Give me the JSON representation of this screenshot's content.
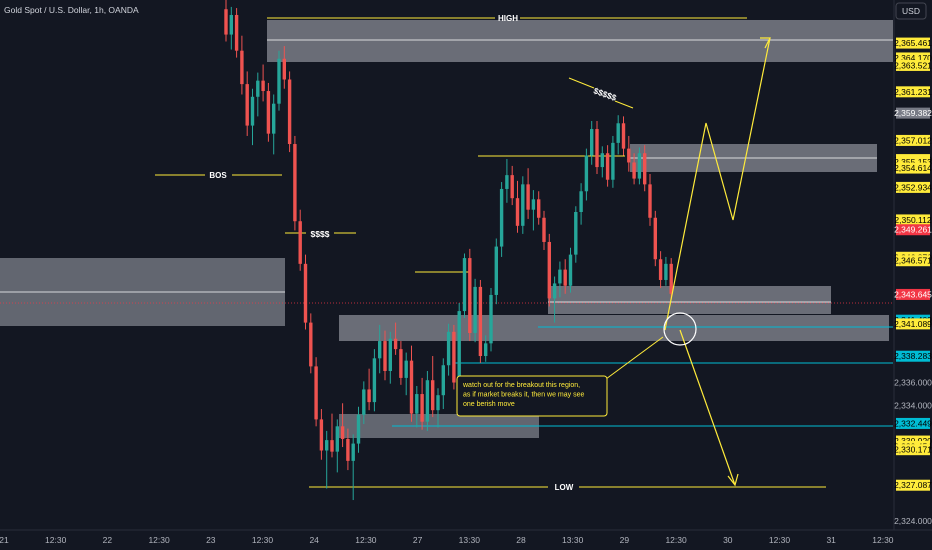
{
  "header": {
    "symbol": "Gold Spot / U.S. Dollar, 1h, OANDA",
    "currency": "USD"
  },
  "colors": {
    "background": "#131722",
    "up": "#26a69a",
    "down": "#ef5350",
    "zone": "#b2b5be",
    "yellow": "#ffeb3b",
    "cyan": "#00bcd4",
    "text": "#d1d4dc",
    "axis": "#b2b5be",
    "current_label": "#f23645"
  },
  "chart_data": {
    "type": "candlestick",
    "xlabel": "",
    "ylabel": "",
    "ylim": [
      2323.2,
      2369.2
    ],
    "y_ticks": [
      2324.0,
      2334.0,
      2336.0
    ],
    "x_ticks": [
      "21",
      "12:30",
      "22",
      "12:30",
      "23",
      "12:30",
      "24",
      "12:30",
      "27",
      "13:30",
      "28",
      "13:30",
      "29",
      "12:30",
      "30",
      "12:30",
      "31",
      "12:30"
    ],
    "price_labels": [
      {
        "text": "2,365.461",
        "value": 2365.461,
        "style": "yellow"
      },
      {
        "text": "2,364.170",
        "value": 2364.17,
        "style": "yellow"
      },
      {
        "text": "2,363.521",
        "value": 2363.521,
        "style": "yellow"
      },
      {
        "text": "2,361.231",
        "value": 2361.231,
        "style": "yellow"
      },
      {
        "text": "2,359.382",
        "value": 2359.382,
        "style": "gray"
      },
      {
        "text": "2,357.012",
        "value": 2357.012,
        "style": "yellow"
      },
      {
        "text": "2,355.349",
        "value": 2355.349,
        "style": "yellow"
      },
      {
        "text": "2,355.153",
        "value": 2355.153,
        "style": "yellow"
      },
      {
        "text": "2,354.614",
        "value": 2354.614,
        "style": "yellow"
      },
      {
        "text": "2,352.934",
        "value": 2352.934,
        "style": "yellow"
      },
      {
        "text": "2,350.112",
        "value": 2350.112,
        "style": "yellow"
      },
      {
        "text": "2,349.261",
        "value": 2349.261,
        "style": "red"
      },
      {
        "text": "2,346.870",
        "value": 2346.87,
        "style": "yellow"
      },
      {
        "text": "2,346.571",
        "value": 2346.571,
        "style": "yellow"
      },
      {
        "text": "2,343.645",
        "value": 2343.645,
        "style": "red"
      },
      {
        "text": "2,341.409",
        "value": 2341.409,
        "style": "cyan"
      },
      {
        "text": "2,341.089",
        "value": 2341.089,
        "style": "yellow"
      },
      {
        "text": "2,338.283",
        "value": 2338.283,
        "style": "cyan"
      },
      {
        "text": "2,332.449",
        "value": 2332.449,
        "style": "cyan"
      },
      {
        "text": "2,330.920",
        "value": 2330.92,
        "style": "yellow"
      },
      {
        "text": "2,330.454",
        "value": 2330.454,
        "style": "yellow"
      },
      {
        "text": "2,330.171",
        "value": 2330.171,
        "style": "yellow"
      },
      {
        "text": "2,327.087",
        "value": 2327.087,
        "style": "yellow"
      }
    ],
    "candles": [
      [
        2368.4,
        2369.3,
        2365.6,
        2366.2
      ],
      [
        2366.2,
        2368.6,
        2364.9,
        2367.9
      ],
      [
        2367.9,
        2368.5,
        2364.2,
        2364.8
      ],
      [
        2364.8,
        2366.1,
        2361.0,
        2361.9
      ],
      [
        2361.9,
        2363.0,
        2357.4,
        2358.3
      ],
      [
        2358.3,
        2361.5,
        2356.6,
        2360.8
      ],
      [
        2360.8,
        2362.9,
        2359.1,
        2362.2
      ],
      [
        2362.2,
        2363.6,
        2360.4,
        2361.3
      ],
      [
        2361.3,
        2362.0,
        2356.9,
        2357.6
      ],
      [
        2357.6,
        2361.0,
        2355.8,
        2360.2
      ],
      [
        2360.2,
        2364.8,
        2359.6,
        2364.1
      ],
      [
        2364.1,
        2365.2,
        2361.5,
        2362.3
      ],
      [
        2362.3,
        2363.0,
        2356.0,
        2356.7
      ],
      [
        2356.7,
        2357.4,
        2349.2,
        2350.0
      ],
      [
        2350.0,
        2351.0,
        2345.7,
        2346.3
      ],
      [
        2346.3,
        2347.1,
        2340.6,
        2341.2
      ],
      [
        2341.2,
        2342.0,
        2336.8,
        2337.4
      ],
      [
        2337.4,
        2338.2,
        2332.2,
        2332.8
      ],
      [
        2332.8,
        2333.7,
        2329.3,
        2330.1
      ],
      [
        2330.1,
        2331.8,
        2326.8,
        2331.0
      ],
      [
        2331.0,
        2333.3,
        2329.5,
        2330.0
      ],
      [
        2330.0,
        2332.8,
        2328.2,
        2332.2
      ],
      [
        2332.2,
        2334.2,
        2330.4,
        2331.1
      ],
      [
        2331.1,
        2332.0,
        2328.4,
        2329.2
      ],
      [
        2329.2,
        2331.5,
        2325.8,
        2330.7
      ],
      [
        2330.7,
        2333.9,
        2329.9,
        2333.2
      ],
      [
        2333.2,
        2336.1,
        2332.4,
        2335.4
      ],
      [
        2335.4,
        2337.2,
        2333.6,
        2334.3
      ],
      [
        2334.3,
        2338.9,
        2333.5,
        2338.1
      ],
      [
        2338.1,
        2341.0,
        2336.8,
        2339.6
      ],
      [
        2339.6,
        2340.5,
        2336.2,
        2337.0
      ],
      [
        2337.0,
        2340.4,
        2335.9,
        2339.8
      ],
      [
        2339.8,
        2341.2,
        2338.4,
        2338.9
      ],
      [
        2338.9,
        2339.6,
        2335.8,
        2336.4
      ],
      [
        2336.4,
        2338.6,
        2334.9,
        2337.9
      ],
      [
        2337.9,
        2339.2,
        2332.6,
        2333.3
      ],
      [
        2333.3,
        2335.7,
        2332.1,
        2335.0
      ],
      [
        2335.0,
        2336.4,
        2331.9,
        2332.6
      ],
      [
        2332.6,
        2337.0,
        2331.8,
        2336.2
      ],
      [
        2336.2,
        2338.3,
        2333.0,
        2333.6
      ],
      [
        2333.6,
        2335.5,
        2332.1,
        2334.9
      ],
      [
        2334.9,
        2338.1,
        2333.7,
        2337.5
      ],
      [
        2337.5,
        2341.1,
        2336.6,
        2340.4
      ],
      [
        2340.4,
        2341.0,
        2335.4,
        2336.0
      ],
      [
        2336.0,
        2342.9,
        2335.3,
        2342.2
      ],
      [
        2342.2,
        2347.2,
        2341.6,
        2346.8
      ],
      [
        2346.8,
        2347.6,
        2339.6,
        2340.3
      ],
      [
        2340.3,
        2345.0,
        2339.5,
        2344.3
      ],
      [
        2344.3,
        2344.9,
        2337.7,
        2338.3
      ],
      [
        2338.3,
        2340.1,
        2337.8,
        2339.4
      ],
      [
        2339.4,
        2344.2,
        2338.7,
        2343.6
      ],
      [
        2343.6,
        2348.5,
        2342.8,
        2347.8
      ],
      [
        2347.8,
        2353.4,
        2346.9,
        2352.8
      ],
      [
        2352.8,
        2355.4,
        2351.6,
        2354.0
      ],
      [
        2354.0,
        2354.8,
        2351.4,
        2352.0
      ],
      [
        2352.0,
        2353.5,
        2349.0,
        2349.6
      ],
      [
        2349.6,
        2353.9,
        2348.9,
        2353.2
      ],
      [
        2353.2,
        2354.6,
        2350.2,
        2351.0
      ],
      [
        2351.0,
        2352.7,
        2349.2,
        2351.9
      ],
      [
        2351.9,
        2352.6,
        2349.7,
        2350.3
      ],
      [
        2350.3,
        2350.9,
        2347.5,
        2348.2
      ],
      [
        2348.2,
        2348.9,
        2342.6,
        2343.3
      ],
      [
        2343.3,
        2345.2,
        2341.2,
        2344.6
      ],
      [
        2344.6,
        2346.5,
        2343.4,
        2345.8
      ],
      [
        2345.8,
        2346.7,
        2343.7,
        2344.4
      ],
      [
        2344.4,
        2347.7,
        2343.8,
        2347.1
      ],
      [
        2347.1,
        2351.3,
        2346.4,
        2350.8
      ],
      [
        2350.8,
        2353.3,
        2349.7,
        2352.6
      ],
      [
        2352.6,
        2356.3,
        2351.8,
        2355.7
      ],
      [
        2355.7,
        2358.7,
        2354.9,
        2358.0
      ],
      [
        2358.0,
        2358.7,
        2354.1,
        2354.7
      ],
      [
        2354.7,
        2356.5,
        2353.8,
        2355.9
      ],
      [
        2355.9,
        2356.6,
        2353.0,
        2353.6
      ],
      [
        2353.6,
        2357.4,
        2352.9,
        2356.8
      ],
      [
        2356.8,
        2359.2,
        2355.8,
        2358.5
      ],
      [
        2358.5,
        2359.1,
        2355.7,
        2356.3
      ],
      [
        2356.3,
        2357.4,
        2354.3,
        2355.1
      ],
      [
        2355.1,
        2355.9,
        2353.2,
        2353.7
      ],
      [
        2353.7,
        2356.4,
        2353.2,
        2355.9
      ],
      [
        2355.9,
        2356.6,
        2352.6,
        2353.2
      ],
      [
        2353.2,
        2354.1,
        2349.6,
        2350.3
      ],
      [
        2350.3,
        2350.9,
        2346.1,
        2346.7
      ],
      [
        2346.7,
        2347.4,
        2344.2,
        2344.9
      ],
      [
        2344.9,
        2346.9,
        2344.4,
        2346.3
      ],
      [
        2346.3,
        2346.8,
        2343.2,
        2343.7
      ]
    ],
    "annotations": [
      {
        "text": "HIGH"
      },
      {
        "text": "BOS"
      },
      {
        "text": "$$$$"
      },
      {
        "text": "$$$$$"
      },
      {
        "text": "LOW"
      },
      {
        "text": "watch out for the breakout this region,\nas if market breaks it, then we may see\none berish move"
      }
    ],
    "grid": false,
    "legend": "none"
  }
}
